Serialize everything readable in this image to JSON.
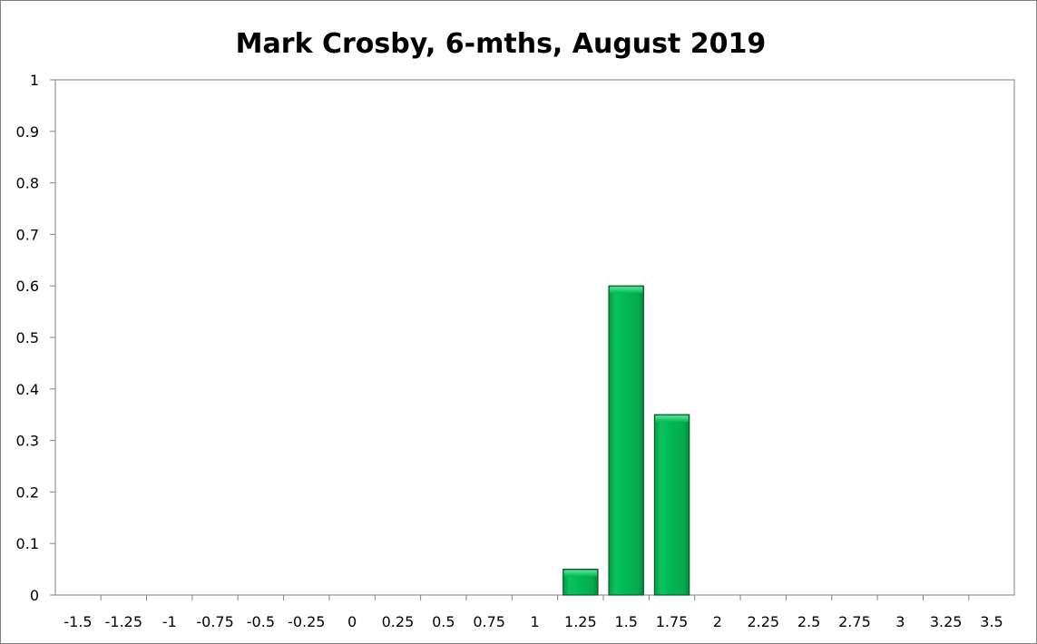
{
  "chart_data": {
    "type": "bar",
    "title": "Mark Crosby, 6-mths, August 2019",
    "xlabel": "",
    "ylabel": "",
    "categories": [
      "-1.5",
      "-1.25",
      "-1",
      "-0.75",
      "-0.5",
      "-0.25",
      "0",
      "0.25",
      "0.5",
      "0.75",
      "1",
      "1.25",
      "1.5",
      "1.75",
      "2",
      "2.25",
      "2.5",
      "2.75",
      "3",
      "3.25",
      "3.5"
    ],
    "values": [
      0,
      0,
      0,
      0,
      0,
      0,
      0,
      0,
      0,
      0,
      0,
      0.05,
      0.6,
      0.35,
      0,
      0,
      0,
      0,
      0,
      0,
      0
    ],
    "ylim": [
      0,
      1
    ],
    "yticks": [
      "0",
      "0.1",
      "0.2",
      "0.3",
      "0.4",
      "0.5",
      "0.6",
      "0.7",
      "0.8",
      "0.9",
      "1"
    ],
    "grid": false,
    "legend": "none",
    "bar_color": "#00b050"
  }
}
